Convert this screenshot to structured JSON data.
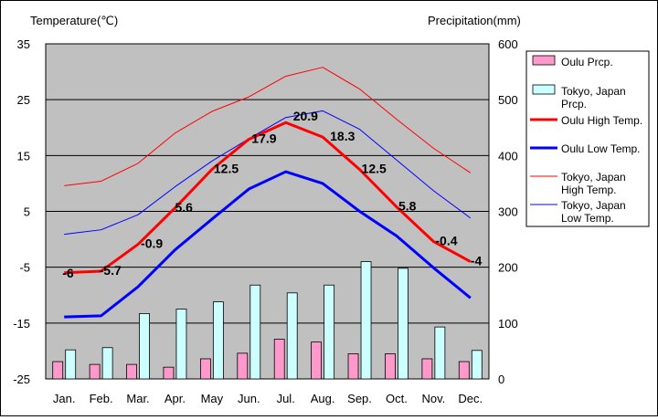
{
  "chart_data": {
    "type": "bar+line",
    "left_axis": {
      "title": "Temperature(℃)",
      "ticks": [
        35,
        25,
        15,
        5,
        -5,
        -15,
        -25
      ],
      "ylim": [
        -25,
        35
      ]
    },
    "right_axis": {
      "title": "Precipitation(mm)",
      "ticks": [
        600,
        500,
        400,
        300,
        200,
        100,
        0
      ],
      "ylim": [
        0,
        600
      ]
    },
    "categories": [
      "Jan.",
      "Feb.",
      "Mar.",
      "Apr.",
      "May",
      "Jun.",
      "Jul.",
      "Aug.",
      "Sep.",
      "Oct.",
      "Nov.",
      "Dec."
    ],
    "grid": true,
    "legend_position": "right",
    "bar_series": [
      {
        "name": "Oulu Prcp.",
        "color": "#ff99cc",
        "values": [
          31,
          26,
          26,
          21,
          36,
          46,
          71,
          66,
          45,
          45,
          36,
          31
        ]
      },
      {
        "name": "Tokyo, Japan Prcp.",
        "color": "#ccffff",
        "values": [
          52,
          56,
          117,
          125,
          138,
          168,
          154,
          168,
          210,
          198,
          93,
          51
        ]
      }
    ],
    "line_series": [
      {
        "name": "Oulu High Temp.",
        "color": "#ff0000",
        "width": 3,
        "values": [
          -6,
          -5.7,
          -0.9,
          5.6,
          12.5,
          17.9,
          20.9,
          18.3,
          12.5,
          5.8,
          -0.4,
          -4
        ],
        "labels": [
          "-6",
          "-5.7",
          "-0.9",
          "5.6",
          "12.5",
          "17.9",
          "20.9",
          "18.3",
          "12.5",
          "5.8",
          "-0.4",
          "-4"
        ]
      },
      {
        "name": "Oulu Low Temp.",
        "color": "#0000ff",
        "width": 3,
        "values": [
          -13.9,
          -13.7,
          -8.5,
          -1.9,
          3.6,
          9,
          12.1,
          10,
          5,
          0.6,
          -5.1,
          -10.5
        ]
      },
      {
        "name": "Tokyo, Japan High Temp.",
        "color": "#ff0000",
        "width": 1,
        "values": [
          9.6,
          10.4,
          13.6,
          19,
          22.9,
          25.5,
          29.2,
          30.8,
          26.9,
          21.5,
          16.3,
          11.9
        ]
      },
      {
        "name": "Tokyo, Japan Low Temp.",
        "color": "#0000ff",
        "width": 1,
        "values": [
          0.9,
          1.7,
          4.4,
          9.4,
          14,
          18,
          21.8,
          23,
          19.7,
          14.2,
          8.7,
          3.8
        ]
      }
    ],
    "legend": [
      {
        "kind": "bar",
        "label_lines": [
          "Oulu Prcp."
        ],
        "color": "#ff99cc"
      },
      {
        "kind": "bar",
        "label_lines": [
          "Tokyo, Japan",
          "Prcp."
        ],
        "color": "#ccffff"
      },
      {
        "kind": "line",
        "label_lines": [
          "Oulu High Temp."
        ],
        "color": "#ff0000",
        "width": 3
      },
      {
        "kind": "line",
        "label_lines": [
          "Oulu Low Temp."
        ],
        "color": "#0000ff",
        "width": 3
      },
      {
        "kind": "line",
        "label_lines": [
          "Tokyo, Japan",
          "High Temp."
        ],
        "color": "#ff0000",
        "width": 1
      },
      {
        "kind": "line",
        "label_lines": [
          "Tokyo, Japan",
          "Low Temp."
        ],
        "color": "#0000ff",
        "width": 1
      }
    ]
  }
}
